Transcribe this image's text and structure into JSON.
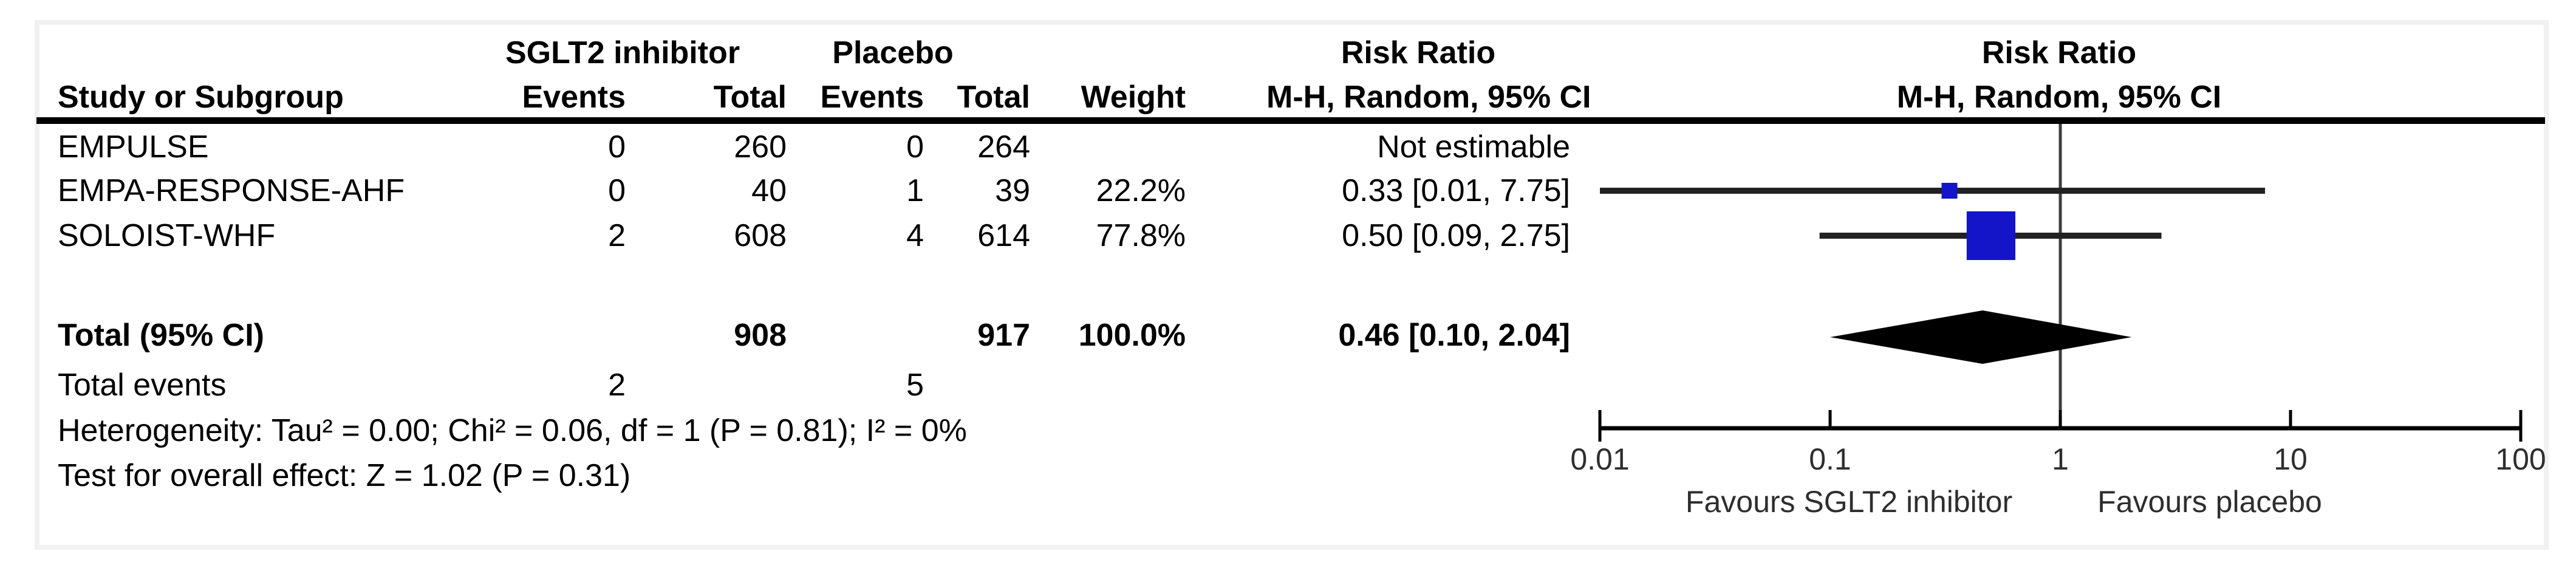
{
  "chart_data": {
    "type": "forest",
    "effect_measure": "Risk Ratio",
    "method": "M-H, Random, 95% CI",
    "header": {
      "col_study": "Study or Subgroup",
      "group_treatment": "SGLT2 inhibitor",
      "group_control": "Placebo",
      "col_events": "Events",
      "col_total": "Total",
      "col_events2": "Events",
      "col_total2": "Total",
      "col_weight": "Weight",
      "rr_text_line1": "Risk Ratio",
      "rr_text_line2": "M-H, Random, 95% CI",
      "rr_plot_line1": "Risk Ratio",
      "rr_plot_line2": "M-H, Random, 95% CI"
    },
    "studies": [
      {
        "name": "EMPULSE",
        "events_tx": "0",
        "total_tx": "260",
        "events_ctrl": "0",
        "total_ctrl": "264",
        "weight": "",
        "rr_text": "Not estimable",
        "rr": null,
        "ci_low": null,
        "ci_high": null,
        "weight_pct": 0
      },
      {
        "name": "EMPA-RESPONSE-AHF",
        "events_tx": "0",
        "total_tx": "40",
        "events_ctrl": "1",
        "total_ctrl": "39",
        "weight": "22.2%",
        "rr_text": "0.33 [0.01, 7.75]",
        "rr": 0.33,
        "ci_low": 0.01,
        "ci_high": 7.75,
        "weight_pct": 22.2
      },
      {
        "name": "SOLOIST-WHF",
        "events_tx": "2",
        "total_tx": "608",
        "events_ctrl": "4",
        "total_ctrl": "614",
        "weight": "77.8%",
        "rr_text": "0.50 [0.09, 2.75]",
        "rr": 0.5,
        "ci_low": 0.09,
        "ci_high": 2.75,
        "weight_pct": 77.8
      }
    ],
    "total": {
      "label": "Total (95% CI)",
      "total_tx": "908",
      "total_ctrl": "917",
      "weight": "100.0%",
      "rr_text": "0.46 [0.10, 2.04]",
      "rr": 0.46,
      "ci_low": 0.1,
      "ci_high": 2.04
    },
    "total_events": {
      "label": "Total events",
      "events_tx": "2",
      "events_ctrl": "5"
    },
    "footnotes": {
      "heterogeneity": "Heterogeneity: Tau² = 0.00; Chi² = 0.06, df = 1 (P = 0.81); I² = 0%",
      "overall_effect": "Test for overall effect: Z = 1.02 (P = 0.31)"
    },
    "axis": {
      "scale": "log",
      "range": [
        0.01,
        100
      ],
      "ticks": [
        0.01,
        0.1,
        1,
        10,
        100
      ],
      "tick_labels": [
        "0.01",
        "0.1",
        "1",
        "10",
        "100"
      ],
      "favours_left": "Favours SGLT2 inhibitor",
      "favours_right": "Favours placebo"
    },
    "colors": {
      "square": "#1414c8",
      "ci_line": "#222222",
      "diamond": "#000000",
      "axis": "#000000",
      "no_effect_line": "#3d3d3d",
      "frame": "#f1f1f1",
      "text": "#000000"
    }
  }
}
